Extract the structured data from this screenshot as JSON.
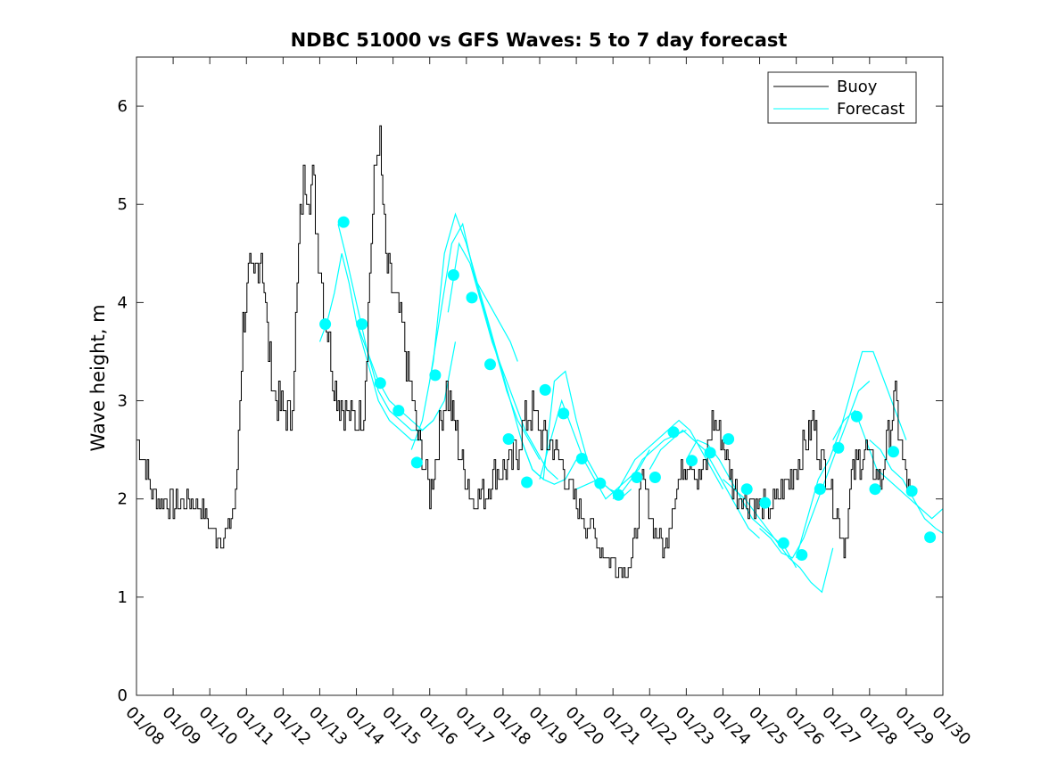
{
  "chart_data": {
    "type": "line",
    "title": "NDBC 51000 vs GFS Waves: 5 to 7 day forecast",
    "xlabel": "",
    "ylabel": "Wave height, m",
    "xlim": [
      0,
      22
    ],
    "ylim": [
      0,
      6.5
    ],
    "yticks": [
      0,
      1,
      2,
      3,
      4,
      5,
      6
    ],
    "xtick_labels": [
      "01/08",
      "01/09",
      "01/10",
      "01/11",
      "01/12",
      "01/13",
      "01/14",
      "01/15",
      "01/16",
      "01/17",
      "01/18",
      "01/19",
      "01/20",
      "01/21",
      "01/22",
      "01/23",
      "01/24",
      "01/25",
      "01/26",
      "01/27",
      "01/28",
      "01/29",
      "01/30"
    ],
    "legend": {
      "position": "top-right",
      "entries": [
        "Buoy",
        "Forecast"
      ]
    },
    "colors": {
      "buoy": "#000000",
      "forecast": "#00FFFF"
    },
    "series": [
      {
        "name": "Buoy",
        "color": "#000000",
        "x": [
          0.0,
          0.25,
          0.5,
          1.0,
          1.5,
          1.8,
          2.0,
          2.3,
          2.5,
          2.7,
          2.9,
          3.05,
          3.2,
          3.4,
          3.6,
          3.8,
          4.0,
          4.2,
          4.3,
          4.5,
          4.6,
          4.8,
          5.0,
          5.1,
          5.25,
          5.35,
          5.5,
          5.7,
          5.85,
          6.0,
          6.2,
          6.4,
          6.6,
          6.8,
          7.0,
          7.2,
          7.4,
          7.6,
          7.75,
          7.9,
          8.0,
          8.15,
          8.3,
          8.45,
          8.55,
          8.7,
          8.85,
          9.0,
          9.2,
          9.4,
          9.6,
          9.8,
          10.0,
          10.2,
          10.4,
          10.6,
          10.8,
          11.0,
          11.2,
          11.4,
          11.6,
          11.8,
          12.0,
          12.3,
          12.6,
          12.9,
          13.2,
          13.5,
          13.8,
          14.1,
          14.4,
          14.7,
          14.9,
          15.1,
          15.3,
          15.5,
          15.7,
          15.9,
          16.1,
          16.3,
          16.6,
          16.9,
          17.2,
          17.5,
          17.8,
          18.1,
          18.3,
          18.45,
          18.6,
          18.8,
          19.0,
          19.15,
          19.3,
          19.5,
          19.7,
          19.9,
          20.1,
          20.3,
          20.5,
          20.7,
          20.9,
          21.1,
          21.3
        ],
        "y": [
          2.6,
          2.3,
          2.0,
          1.95,
          2.0,
          1.9,
          1.7,
          1.6,
          1.65,
          2.0,
          3.8,
          4.2,
          4.2,
          4.6,
          3.5,
          3.0,
          2.9,
          2.8,
          3.5,
          5.1,
          5.3,
          5.2,
          4.4,
          4.0,
          3.6,
          3.3,
          3.0,
          2.9,
          2.8,
          2.8,
          2.9,
          4.7,
          5.8,
          4.4,
          4.1,
          3.8,
          3.3,
          2.8,
          2.5,
          2.2,
          2.05,
          2.4,
          2.8,
          3.1,
          3.0,
          2.7,
          2.4,
          2.2,
          2.0,
          2.05,
          2.1,
          2.3,
          2.3,
          2.35,
          2.5,
          2.8,
          2.9,
          2.7,
          2.6,
          2.5,
          2.4,
          2.1,
          1.95,
          1.75,
          1.55,
          1.4,
          1.3,
          1.35,
          2.2,
          1.7,
          1.5,
          2.1,
          2.3,
          2.5,
          2.2,
          2.3,
          2.8,
          2.7,
          2.4,
          2.1,
          2.0,
          1.95,
          1.9,
          2.0,
          2.2,
          2.4,
          2.6,
          2.8,
          2.5,
          2.3,
          2.0,
          1.8,
          1.5,
          2.2,
          2.4,
          2.5,
          2.3,
          2.2,
          2.6,
          3.0,
          2.4,
          2.0,
          2.1
        ]
      },
      {
        "name": "Forecast",
        "color": "#00FFFF",
        "segments": [
          {
            "x": [
              5.0,
              5.2,
              5.4,
              5.6,
              5.8,
              6.0,
              6.3,
              6.6,
              6.9,
              7.2,
              7.5,
              7.8
            ],
            "y": [
              3.6,
              3.8,
              4.1,
              4.5,
              4.2,
              3.8,
              3.4,
              3.0,
              2.8,
              2.7,
              2.6,
              2.6
            ]
          },
          {
            "x": [
              5.5,
              5.7,
              6.0,
              6.3,
              6.6,
              6.9,
              7.2,
              7.5,
              7.8,
              8.1
            ],
            "y": [
              4.8,
              4.5,
              4.0,
              3.5,
              3.1,
              2.9,
              2.8,
              2.7,
              2.7,
              2.8
            ]
          },
          {
            "x": [
              6.0,
              6.3,
              6.6,
              6.9,
              7.2,
              7.5,
              7.8,
              8.1,
              8.4,
              8.7
            ],
            "y": [
              3.8,
              3.5,
              3.2,
              3.0,
              2.9,
              2.8,
              2.7,
              2.8,
              3.0,
              3.6
            ]
          },
          {
            "x": [
              7.5,
              7.8,
              8.1,
              8.4,
              8.7,
              9.0,
              9.3,
              9.6,
              9.9,
              10.2,
              10.4
            ],
            "y": [
              2.5,
              2.8,
              3.4,
              4.5,
              4.9,
              4.6,
              4.2,
              4.0,
              3.8,
              3.6,
              3.4
            ]
          },
          {
            "x": [
              8.0,
              8.3,
              8.6,
              8.9,
              9.2,
              9.5,
              9.8,
              10.1,
              10.4,
              10.7,
              11.0
            ],
            "y": [
              3.2,
              3.9,
              4.6,
              4.8,
              4.3,
              3.9,
              3.5,
              3.1,
              2.8,
              2.6,
              2.4
            ]
          },
          {
            "x": [
              8.5,
              8.8,
              9.1,
              9.4,
              9.7,
              10.0,
              10.3,
              10.6,
              10.9,
              11.2,
              11.5
            ],
            "y": [
              3.9,
              4.6,
              4.4,
              4.0,
              3.6,
              3.3,
              3.0,
              2.7,
              2.5,
              2.3,
              2.2
            ]
          },
          {
            "x": [
              9.0,
              9.3,
              9.6,
              9.9,
              10.2,
              10.5,
              10.8,
              11.1,
              11.4,
              11.7,
              12.0
            ],
            "y": [
              4.6,
              4.2,
              3.8,
              3.4,
              3.0,
              2.6,
              2.3,
              2.2,
              2.15,
              2.2,
              2.4
            ]
          },
          {
            "x": [
              10.5,
              10.8,
              11.1,
              11.4,
              11.7,
              12.0,
              12.3,
              12.6,
              12.9,
              13.2,
              13.5
            ],
            "y": [
              2.6,
              2.3,
              2.2,
              3.2,
              3.3,
              2.8,
              2.4,
              2.2,
              2.1,
              2.0,
              2.1
            ]
          },
          {
            "x": [
              11.0,
              11.3,
              11.6,
              11.9,
              12.2,
              12.5,
              12.8,
              13.1,
              13.4,
              13.7,
              14.0
            ],
            "y": [
              2.2,
              2.6,
              3.0,
              2.7,
              2.4,
              2.2,
              2.0,
              2.1,
              2.2,
              2.3,
              2.5
            ]
          },
          {
            "x": [
              12.0,
              12.3,
              12.6,
              12.9,
              13.2,
              13.5,
              13.8,
              14.1,
              14.4,
              14.7,
              15.0
            ],
            "y": [
              2.1,
              2.15,
              2.2,
              2.1,
              2.05,
              2.2,
              2.4,
              2.5,
              2.6,
              2.65,
              2.7
            ]
          },
          {
            "x": [
              13.0,
              13.3,
              13.6,
              13.9,
              14.2,
              14.5,
              14.8,
              15.1,
              15.4,
              15.7,
              16.0
            ],
            "y": [
              2.0,
              2.2,
              2.4,
              2.5,
              2.6,
              2.7,
              2.8,
              2.7,
              2.5,
              2.3,
              2.1
            ]
          },
          {
            "x": [
              14.0,
              14.3,
              14.6,
              14.9,
              15.2,
              15.5,
              15.8,
              16.1,
              16.4,
              16.7,
              17.0
            ],
            "y": [
              2.3,
              2.5,
              2.6,
              2.7,
              2.6,
              2.5,
              2.3,
              2.1,
              1.9,
              1.7,
              1.6
            ]
          },
          {
            "x": [
              15.0,
              15.3,
              15.6,
              15.9,
              16.2,
              16.5,
              16.8,
              17.1,
              17.4,
              17.7,
              18.0
            ],
            "y": [
              2.4,
              2.6,
              2.55,
              2.4,
              2.2,
              2.0,
              1.8,
              1.7,
              1.6,
              1.5,
              1.3
            ]
          },
          {
            "x": [
              16.0,
              16.3,
              16.6,
              16.9,
              17.2,
              17.5,
              17.8,
              18.1,
              18.4,
              18.7,
              19.0
            ],
            "y": [
              2.2,
              2.1,
              2.0,
              1.85,
              1.7,
              1.55,
              1.4,
              1.3,
              1.15,
              1.05,
              1.5
            ]
          },
          {
            "x": [
              17.0,
              17.3,
              17.6,
              17.9,
              18.2,
              18.5,
              18.8,
              19.1,
              19.4,
              19.7,
              20.0
            ],
            "y": [
              1.7,
              1.6,
              1.45,
              1.4,
              1.6,
              1.9,
              2.2,
              2.5,
              2.8,
              3.1,
              3.2
            ]
          },
          {
            "x": [
              18.0,
              18.3,
              18.6,
              18.9,
              19.2,
              19.5,
              19.8,
              20.1,
              20.4,
              20.7,
              21.0
            ],
            "y": [
              1.4,
              1.8,
              2.2,
              2.4,
              2.7,
              3.1,
              3.5,
              3.5,
              3.2,
              2.9,
              2.6
            ]
          },
          {
            "x": [
              19.0,
              19.3,
              19.6,
              19.9,
              20.2,
              20.5,
              20.8,
              21.1,
              21.4,
              21.7,
              22.0
            ],
            "y": [
              2.6,
              2.8,
              2.9,
              2.6,
              2.3,
              2.2,
              2.1,
              2.0,
              1.9,
              1.8,
              1.9
            ]
          },
          {
            "x": [
              20.0,
              20.3,
              20.6,
              20.9,
              21.2,
              21.5,
              21.8,
              22.0
            ],
            "y": [
              2.6,
              2.5,
              2.3,
              2.2,
              2.0,
              1.8,
              1.7,
              1.65
            ]
          }
        ],
        "markers": {
          "x": [
            5.15,
            5.65,
            6.15,
            6.65,
            7.15,
            7.65,
            8.15,
            8.65,
            9.15,
            9.65,
            10.15,
            10.65,
            11.15,
            11.65,
            12.15,
            12.65,
            13.15,
            13.65,
            14.15,
            14.65,
            15.15,
            15.65,
            16.15,
            16.65,
            17.15,
            17.65,
            18.15,
            18.65,
            19.15,
            19.65,
            20.15,
            20.65,
            21.15,
            21.65
          ],
          "y": [
            3.78,
            4.82,
            3.78,
            3.18,
            2.9,
            2.37,
            3.26,
            4.28,
            4.05,
            3.37,
            2.61,
            2.17,
            3.11,
            2.87,
            2.41,
            2.16,
            2.04,
            2.22,
            2.22,
            2.68,
            2.39,
            2.47,
            2.61,
            2.1,
            1.96,
            1.55,
            1.43,
            2.1,
            2.52,
            2.84,
            2.1,
            2.48,
            2.08,
            1.61
          ]
        }
      }
    ]
  }
}
